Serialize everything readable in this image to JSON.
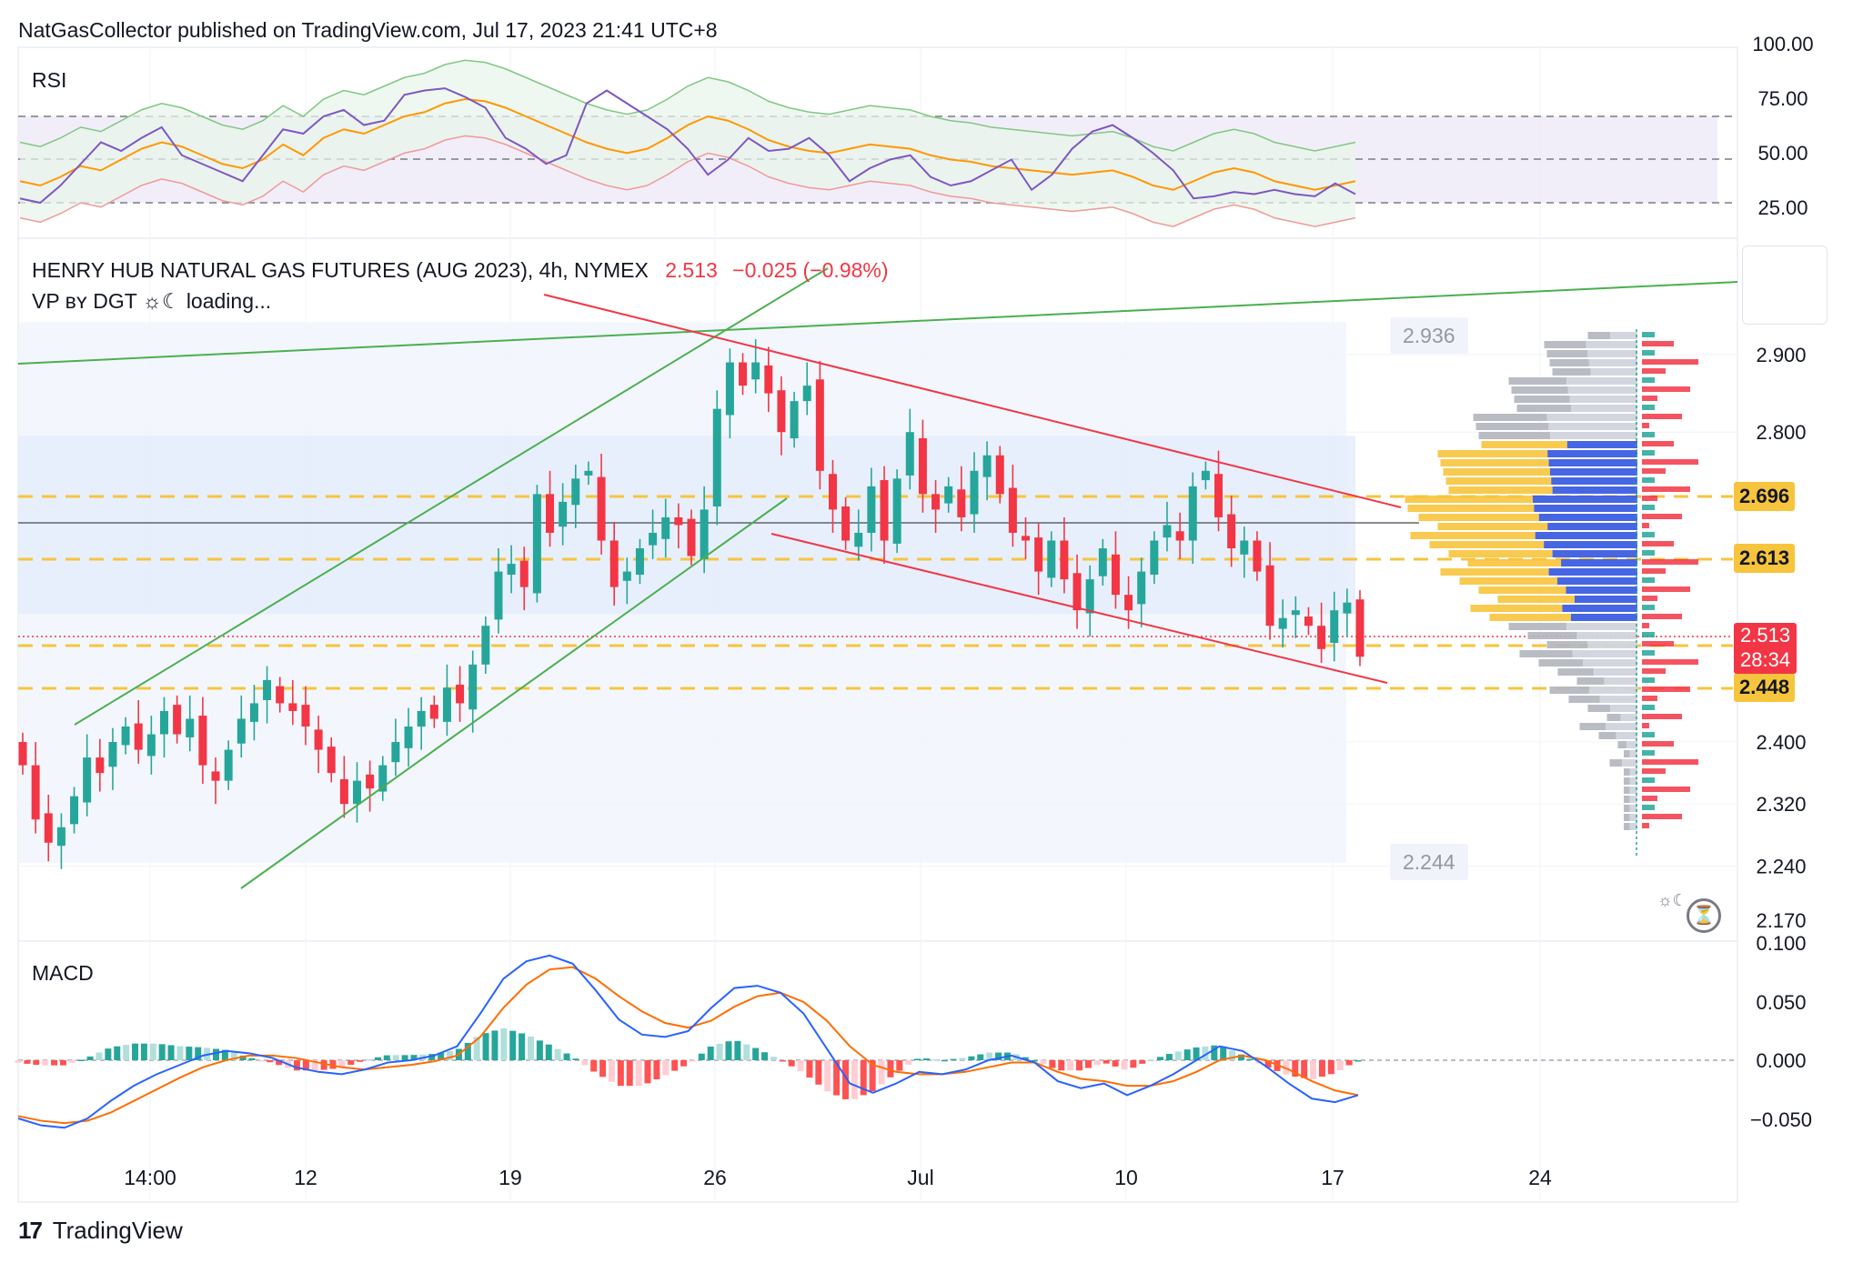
{
  "header": {
    "published_text": "NatGasCollector published on TradingView.com, Jul 17, 2023 21:41 UTC+8",
    "symbol": "HENRY HUB NATURAL GAS FUTURES (AUG 2023), 4h, NYMEX",
    "last": "2.513",
    "change": "−0.025 (−0.98%)",
    "indicator_label": "VP ʙʏ DGT ☼☾ loading..."
  },
  "footer": {
    "brand": "TradingView",
    "logo_icon": "tradingview-logo-icon"
  },
  "colors": {
    "up": "#26a69a",
    "down": "#f23645",
    "channel_green": "#4caf50",
    "channel_red": "#f23645",
    "level": "#f7c43d",
    "macd": "#2962ff",
    "signal": "#ff6d00",
    "rsi": "#7e57c2",
    "rsi_ma": "#ff9800"
  },
  "price_tags": {
    "lvl1": "2.696",
    "lvl2": "2.613",
    "lvl3": "2.448",
    "current": "2.513",
    "countdown": "28:34",
    "high_box": "2.936",
    "low_box": "2.244"
  },
  "chart_data": [
    {
      "type": "line",
      "name": "RSI",
      "title": "RSI",
      "y_axis_ticks": [
        "100.00",
        "75.00",
        "50.00",
        "25.00"
      ],
      "bands": [
        30,
        50,
        70
      ],
      "series": [
        {
          "values": [
            40,
            38,
            42,
            47,
            45,
            50,
            55,
            58,
            56,
            52,
            48,
            46,
            50,
            57,
            52,
            60,
            64,
            62,
            66,
            70,
            72,
            76,
            78,
            77,
            74,
            70,
            66,
            62,
            58,
            55,
            53,
            55,
            60,
            66,
            70,
            68,
            64,
            59,
            56,
            54,
            53,
            55,
            57,
            56,
            55,
            52,
            50,
            49,
            47,
            46,
            45,
            44,
            43,
            44,
            45,
            42,
            38,
            36,
            40,
            44,
            46,
            44,
            40,
            38,
            36,
            38,
            40
          ]
        },
        {
          "values": [
            32,
            30,
            38,
            48,
            58,
            54,
            60,
            65,
            52,
            48,
            44,
            40,
            52,
            64,
            62,
            70,
            73,
            66,
            68,
            80,
            82,
            83,
            79,
            74,
            60,
            55,
            48,
            52,
            76,
            82,
            76,
            70,
            64,
            55,
            43,
            50,
            60,
            54,
            55,
            60,
            52,
            40,
            46,
            50,
            52,
            42,
            38,
            40,
            45,
            50,
            36,
            43,
            55,
            63,
            66,
            60,
            53,
            45,
            32,
            33,
            35,
            34,
            36,
            34,
            33,
            39,
            34
          ]
        }
      ]
    },
    {
      "type": "candlestick",
      "title": "HENRY HUB NATURAL GAS FUTURES (AUG 2023), 4h, NYMEX",
      "x_tick_labels": [
        "14:00",
        "12",
        "19",
        "26",
        "Jul",
        "10",
        "17",
        "24"
      ],
      "y_axis_ticks": [
        "2.900",
        "2.800",
        "2.696",
        "2.613",
        "2.513",
        "2.448",
        "2.400",
        "2.320",
        "2.240",
        "2.170"
      ],
      "ylim": [
        2.16,
        3.02
      ],
      "close": [
        2.37,
        2.3,
        2.27,
        2.29,
        2.33,
        2.38,
        2.36,
        2.4,
        2.42,
        2.39,
        2.41,
        2.44,
        2.41,
        2.43,
        2.37,
        2.35,
        2.39,
        2.43,
        2.45,
        2.48,
        2.45,
        2.44,
        2.42,
        2.39,
        2.36,
        2.32,
        2.35,
        2.34,
        2.37,
        2.4,
        2.42,
        2.44,
        2.43,
        2.47,
        2.45,
        2.5,
        2.55,
        2.62,
        2.63,
        2.6,
        2.72,
        2.67,
        2.71,
        2.74,
        2.75,
        2.66,
        2.6,
        2.62,
        2.65,
        2.67,
        2.69,
        2.68,
        2.64,
        2.7,
        2.83,
        2.89,
        2.86,
        2.89,
        2.85,
        2.8,
        2.84,
        2.86,
        2.75,
        2.7,
        2.66,
        2.67,
        2.73,
        2.66,
        2.74,
        2.8,
        2.72,
        2.7,
        2.73,
        2.69,
        2.75,
        2.77,
        2.72,
        2.67,
        2.66,
        2.62,
        2.66,
        2.61,
        2.57,
        2.61,
        2.65,
        2.59,
        2.57,
        2.62,
        2.66,
        2.68,
        2.66,
        2.73,
        2.75,
        2.69,
        2.65,
        2.66,
        2.62,
        2.55,
        2.56,
        2.57,
        2.55,
        2.52,
        2.57,
        2.58,
        2.51
      ]
    },
    {
      "type": "line",
      "name": "MACD",
      "title": "MACD",
      "y_axis_ticks": [
        "0.100",
        "0.050",
        "0.000",
        "−0.050"
      ],
      "ylim": [
        -0.07,
        0.1
      ],
      "series": [
        {
          "values": [
            -0.05,
            -0.056,
            -0.058,
            -0.05,
            -0.035,
            -0.022,
            -0.012,
            -0.004,
            0.004,
            0.008,
            0.006,
            0.002,
            -0.006,
            -0.01,
            -0.012,
            -0.008,
            -0.002,
            0.0,
            0.004,
            0.012,
            0.04,
            0.07,
            0.085,
            0.09,
            0.083,
            0.06,
            0.035,
            0.022,
            0.02,
            0.025,
            0.045,
            0.062,
            0.064,
            0.058,
            0.04,
            0.01,
            -0.02,
            -0.028,
            -0.02,
            -0.01,
            -0.012,
            -0.008,
            0.0,
            0.004,
            -0.002,
            -0.018,
            -0.024,
            -0.02,
            -0.03,
            -0.022,
            -0.012,
            0.0,
            0.012,
            0.008,
            -0.005,
            -0.02,
            -0.033,
            -0.036,
            -0.03
          ]
        },
        {
          "values": [
            -0.048,
            -0.052,
            -0.054,
            -0.052,
            -0.045,
            -0.035,
            -0.025,
            -0.015,
            -0.006,
            0.0,
            0.004,
            0.004,
            0.002,
            -0.002,
            -0.006,
            -0.008,
            -0.006,
            -0.004,
            -0.001,
            0.004,
            0.02,
            0.045,
            0.065,
            0.078,
            0.08,
            0.07,
            0.055,
            0.042,
            0.032,
            0.028,
            0.034,
            0.046,
            0.055,
            0.058,
            0.05,
            0.034,
            0.012,
            -0.004,
            -0.01,
            -0.012,
            -0.012,
            -0.01,
            -0.006,
            -0.002,
            -0.002,
            -0.01,
            -0.016,
            -0.018,
            -0.022,
            -0.022,
            -0.018,
            -0.01,
            0.0,
            0.004,
            0.0,
            -0.008,
            -0.018,
            -0.026,
            -0.03
          ]
        }
      ]
    }
  ]
}
